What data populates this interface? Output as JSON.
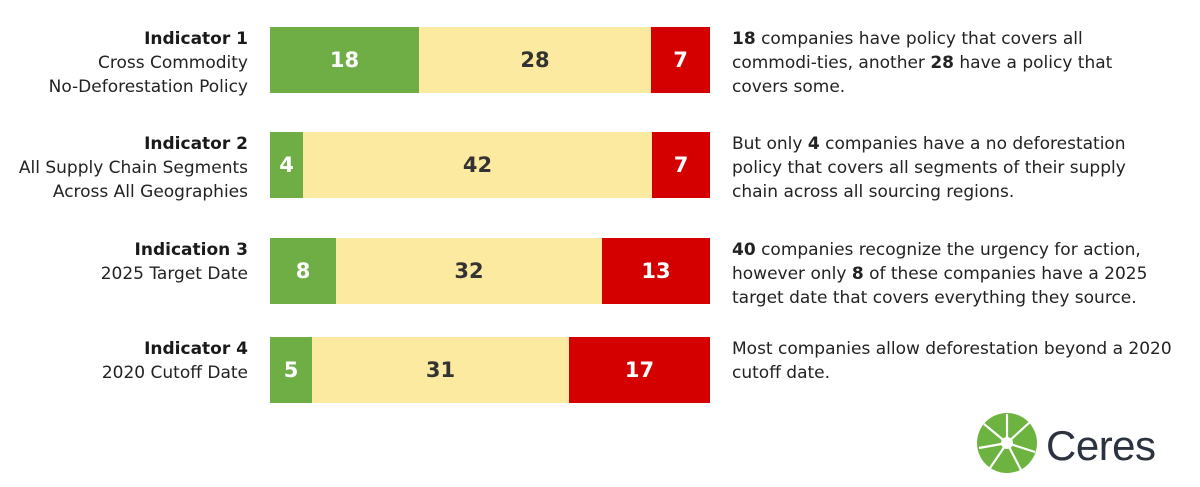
{
  "colors": {
    "green": "#6fae45",
    "yellow": "#fdeaa1",
    "red": "#d40000",
    "logo_green": "#6cb33f"
  },
  "rows": [
    {
      "label_bold": "Indicator 1",
      "label_lines": [
        "Cross Commodity",
        "No-Deforestation Policy"
      ],
      "note": [
        {
          "t": "18",
          "b": true
        },
        {
          "t": " companies have policy that covers all commodi-ties, another ",
          "b": false
        },
        {
          "t": "28",
          "b": true
        },
        {
          "t": " have a policy that covers some.",
          "b": false
        }
      ]
    },
    {
      "label_bold": "Indicator 2",
      "label_lines": [
        "All Supply Chain Segments",
        "Across All Geographies"
      ],
      "note": [
        {
          "t": "But only ",
          "b": false
        },
        {
          "t": "4",
          "b": true
        },
        {
          "t": " companies have a no deforestation policy that covers all segments of their supply chain across all sourcing regions.",
          "b": false
        }
      ]
    },
    {
      "label_bold": "Indication 3",
      "label_lines": [
        "2025 Target Date"
      ],
      "note": [
        {
          "t": "40",
          "b": true
        },
        {
          "t": " companies recognize the urgency for action, however only ",
          "b": false
        },
        {
          "t": "8",
          "b": true
        },
        {
          "t": " of these companies have a 2025 target date that covers everything they source.",
          "b": false
        }
      ]
    },
    {
      "label_bold": "Indicator 4",
      "label_lines": [
        "2020 Cutoff Date"
      ],
      "note": [
        {
          "t": "Most companies allow deforestation beyond a 2020 cutoff date.",
          "b": false
        }
      ]
    }
  ],
  "chart_data": {
    "type": "bar",
    "orientation": "horizontal",
    "stacked": true,
    "categories": [
      "Indicator 1",
      "Indicator 2",
      "Indication 3",
      "Indicator 4"
    ],
    "series": [
      {
        "values": [
          18,
          4,
          8,
          5
        ],
        "color": "#6fae45"
      },
      {
        "values": [
          28,
          42,
          32,
          31
        ],
        "color": "#fdeaa1"
      },
      {
        "values": [
          7,
          7,
          13,
          17
        ],
        "color": "#d40000"
      }
    ]
  },
  "logo": {
    "text": "Ceres"
  }
}
